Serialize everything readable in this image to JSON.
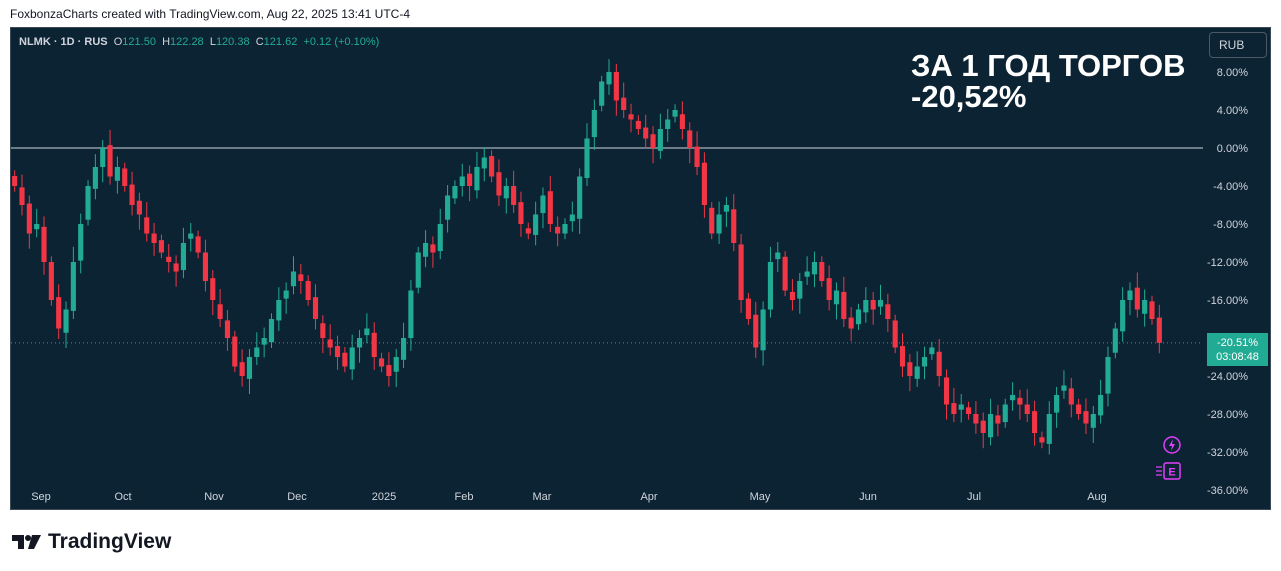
{
  "header": {
    "text": "FoxbonzaCharts created with TradingView.com, Aug 22, 2025 13:41 UTC-4"
  },
  "legend": {
    "symbol": "NLMK · 1D · RUS",
    "o_label": "O",
    "o_value": "121.50",
    "h_label": "H",
    "h_value": "122.28",
    "l_label": "L",
    "l_value": "120.38",
    "c_label": "C",
    "c_value": "121.62",
    "change": "+0.12 (+0.10%)"
  },
  "overlay": {
    "line1": "ЗА 1 ГОД ТОРГОВ",
    "line2": "-20,52%"
  },
  "currency_button": "RUB",
  "price_tag": {
    "percent": "-20.51%",
    "countdown": "03:08:48"
  },
  "footer": {
    "brand": "TradingView"
  },
  "icons": {
    "flash": "lightning-icon",
    "earnings": "earnings-e-icon",
    "logo": "tradingview-logo-icon"
  },
  "colors": {
    "up": "#22ab94",
    "down": "#f23645",
    "background": "#0c2333",
    "zero_line": "#d1d4dc"
  },
  "chart_data": {
    "type": "candlestick",
    "title": "",
    "y_unit": "percent change",
    "ylim": [
      -36,
      12
    ],
    "y_ticks": [
      "8.00%",
      "4.00%",
      "0.00%",
      "-4.00%",
      "-8.00%",
      "-12.00%",
      "-16.00%",
      "-20.00%",
      "-24.00%",
      "-28.00%",
      "-32.00%",
      "-36.00%"
    ],
    "x_ticks": [
      "Sep",
      "Oct",
      "Nov",
      "Dec",
      "2025",
      "Feb",
      "Mar",
      "Apr",
      "May",
      "Jun",
      "Jul",
      "Aug"
    ],
    "close_series": [
      -4,
      -6,
      -9,
      -8,
      -12,
      -16,
      -19,
      -17,
      -12,
      -8,
      -4,
      -2,
      0,
      -3,
      -2,
      -4,
      -6,
      -7,
      -9,
      -10,
      -11,
      -12,
      -13,
      -10,
      -9,
      -11,
      -14,
      -16,
      -18,
      -20,
      -23,
      -24,
      -22,
      -21,
      -20,
      -18,
      -16,
      -15,
      -13,
      -14,
      -16,
      -18,
      -20,
      -21,
      -22,
      -23,
      -21,
      -20,
      -19,
      -22,
      -23,
      -24,
      -22,
      -20,
      -15,
      -11,
      -10,
      -11,
      -8,
      -5,
      -4,
      -3,
      -4,
      -2,
      -1,
      -3,
      -5,
      -4,
      -6,
      -8,
      -9,
      -7,
      -5,
      -8,
      -9,
      -8,
      -7,
      -3,
      1,
      4,
      7,
      8,
      5,
      4,
      3,
      2,
      1,
      0,
      2,
      3,
      4,
      2,
      0,
      -2,
      -6,
      -9,
      -7,
      -6,
      -10,
      -16,
      -18,
      -21,
      -17,
      -12,
      -11,
      -15,
      -16,
      -14,
      -13,
      -12,
      -14,
      -16,
      -15,
      -18,
      -19,
      -17,
      -16,
      -17,
      -16,
      -18,
      -21,
      -23,
      -24,
      -23,
      -22,
      -21,
      -24,
      -27,
      -28,
      -27,
      -28,
      -29,
      -30,
      -28,
      -29,
      -27,
      -26,
      -27,
      -28,
      -30,
      -31,
      -28,
      -26,
      -25,
      -27,
      -28,
      -29,
      -28,
      -26,
      -22,
      -19,
      -16,
      -15,
      -17,
      -16,
      -18,
      -20.51
    ],
    "last_value": -20.51
  }
}
